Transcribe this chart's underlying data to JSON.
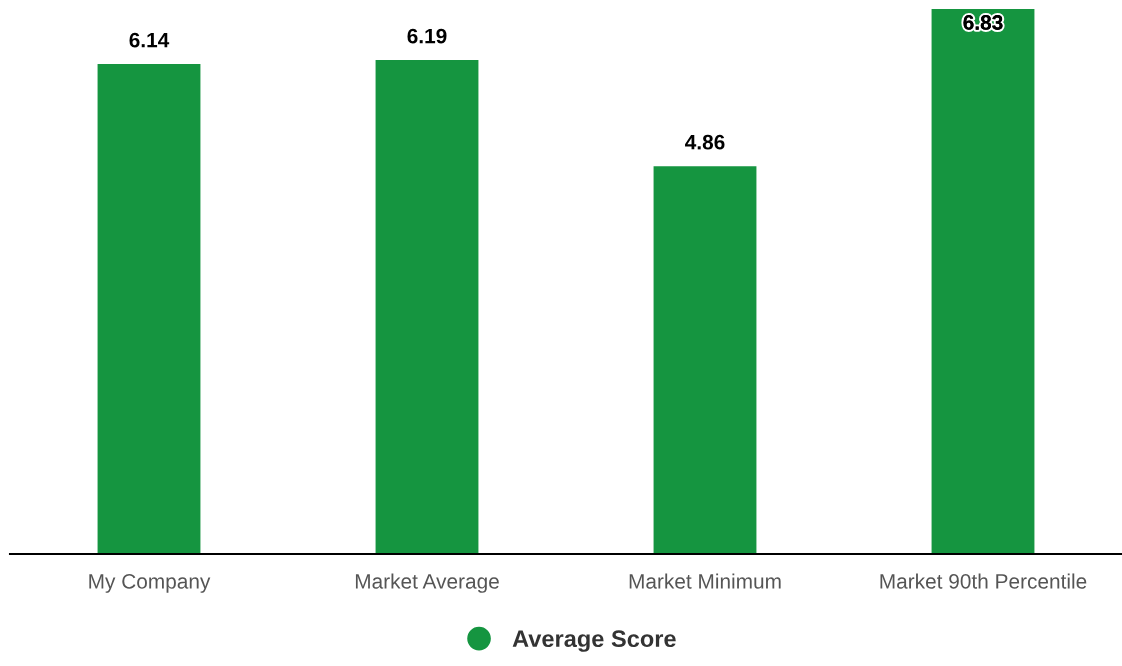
{
  "chart_data": {
    "type": "bar",
    "categories": [
      "My Company",
      "Market Average",
      "Market Minimum",
      "Market 90th Percentile"
    ],
    "series": [
      {
        "name": "Average Score",
        "color": "#159540",
        "values": [
          6.14,
          6.19,
          4.86,
          6.83
        ]
      }
    ],
    "data_labels": true,
    "legend": "bottom",
    "grid": false
  }
}
